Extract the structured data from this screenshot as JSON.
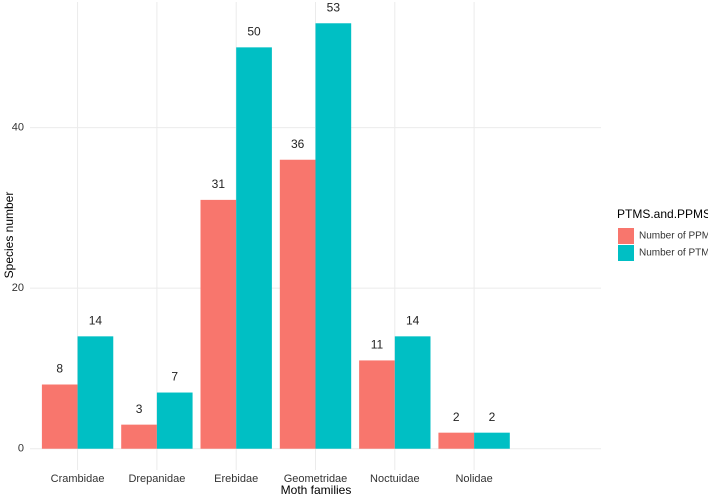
{
  "chart_data": {
    "type": "bar",
    "x_label": "Moth families",
    "y_label": "Species number",
    "categories": [
      "Crambidae",
      "Drepanidae",
      "Erebidae",
      "Geometridae",
      "Noctuidae",
      "Nolidae"
    ],
    "legend_title": "PTMS.and.PPMS",
    "series": [
      {
        "name": "Number of PPMS",
        "color": "#F8766D",
        "values": [
          8,
          3,
          31,
          36,
          11,
          2
        ]
      },
      {
        "name": "Number of PTMS",
        "color": "#00BFC4",
        "values": [
          14,
          7,
          50,
          53,
          14,
          2
        ]
      }
    ],
    "ylim": [
      -2.65,
      55.65
    ],
    "yticks": [
      0,
      20,
      40
    ],
    "grid": true,
    "legend": "right"
  }
}
